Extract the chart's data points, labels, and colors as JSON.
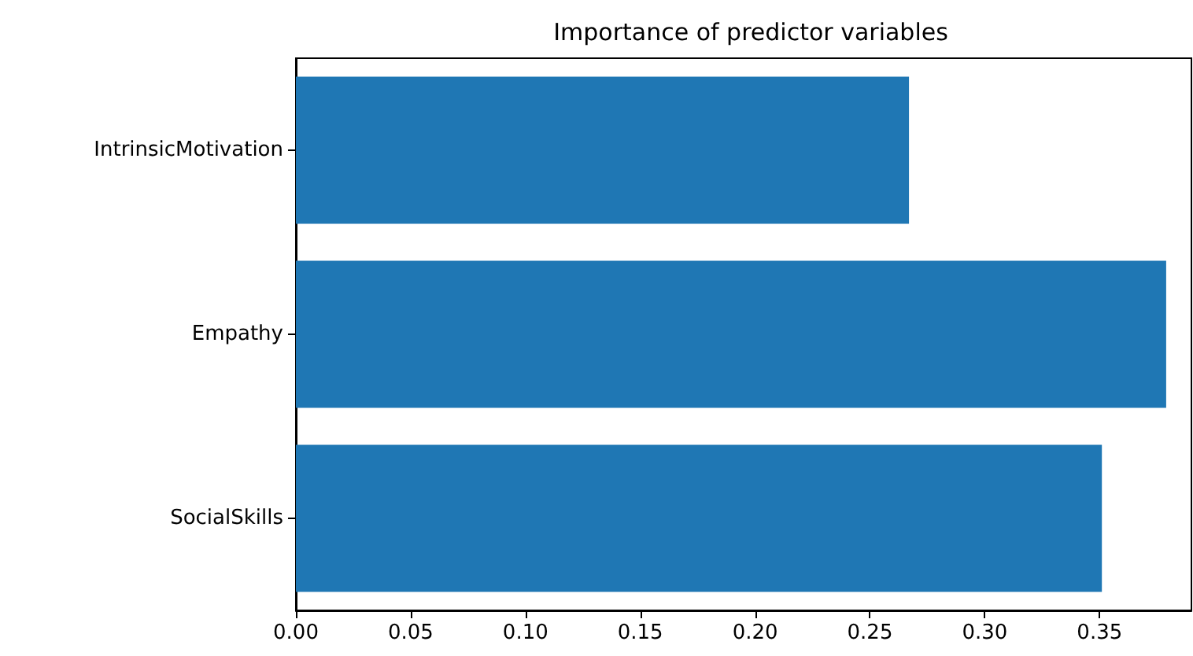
{
  "chart_data": {
    "type": "bar",
    "orientation": "horizontal",
    "title": "Importance of predictor variables",
    "categories": [
      "IntrinsicMotivation",
      "Empathy",
      "SocialSkills"
    ],
    "values": [
      0.267,
      0.379,
      0.351
    ],
    "color": "#1f77b4",
    "xlim": [
      0,
      0.39
    ],
    "xticks": [
      {
        "value": 0,
        "label": "0.00"
      },
      0.05,
      {
        "value": 0.1,
        "label": "0.10"
      },
      0.15,
      {
        "value": 0.2,
        "label": "0.20"
      },
      0.25,
      {
        "value": 0.3,
        "label": "0.30"
      },
      0.35
    ],
    "grid": false
  }
}
